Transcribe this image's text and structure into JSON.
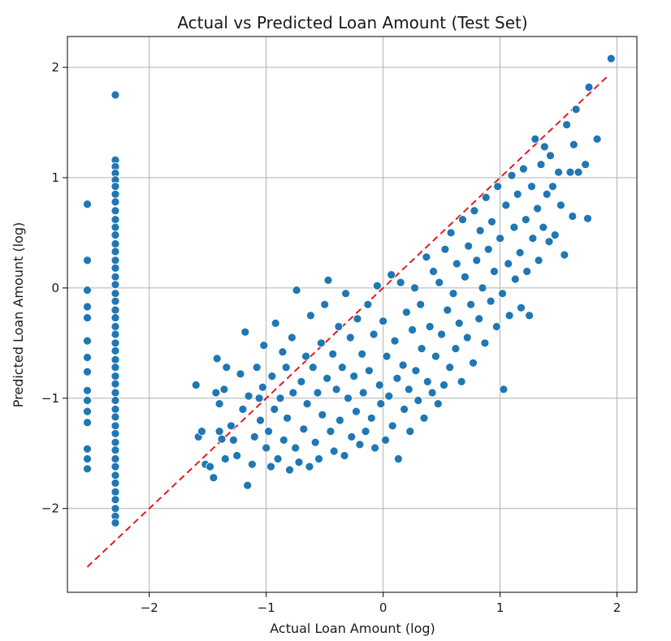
{
  "chart_data": {
    "type": "scatter",
    "title": "Actual vs Predicted Loan Amount (Test Set)",
    "xlabel": "Actual Loan Amount (log)",
    "ylabel": "Predicted Loan Amount (log)",
    "xlim": [
      -2.7,
      2.17
    ],
    "ylim": [
      -2.76,
      2.28
    ],
    "xticks": [
      -2,
      -1,
      0,
      1,
      2
    ],
    "yticks": [
      -2,
      -1,
      0,
      1,
      2
    ],
    "xtick_labels": [
      "−2",
      "−1",
      "0",
      "1",
      "2"
    ],
    "ytick_labels": [
      "−2",
      "−1",
      "0",
      "1",
      "2"
    ],
    "grid": true,
    "point_color": "#1f77b4",
    "points": [
      [
        -2.53,
        0.76
      ],
      [
        -2.53,
        0.25
      ],
      [
        -2.53,
        -0.02
      ],
      [
        -2.53,
        -0.17
      ],
      [
        -2.53,
        -0.27
      ],
      [
        -2.53,
        -0.48
      ],
      [
        -2.53,
        -0.63
      ],
      [
        -2.53,
        -0.76
      ],
      [
        -2.53,
        -0.93
      ],
      [
        -2.53,
        -1.02
      ],
      [
        -2.53,
        -1.12
      ],
      [
        -2.53,
        -1.22
      ],
      [
        -2.53,
        -1.46
      ],
      [
        -2.53,
        -1.55
      ],
      [
        -2.53,
        -1.64
      ],
      [
        -2.29,
        1.75
      ],
      [
        -2.29,
        1.16
      ],
      [
        -2.29,
        1.1
      ],
      [
        -2.29,
        1.04
      ],
      [
        -2.29,
        0.98
      ],
      [
        -2.29,
        0.92
      ],
      [
        -2.29,
        0.85
      ],
      [
        -2.29,
        0.78
      ],
      [
        -2.29,
        0.7
      ],
      [
        -2.29,
        0.62
      ],
      [
        -2.29,
        0.55
      ],
      [
        -2.29,
        0.48
      ],
      [
        -2.29,
        0.4
      ],
      [
        -2.29,
        0.33
      ],
      [
        -2.29,
        0.25
      ],
      [
        -2.29,
        0.18
      ],
      [
        -2.29,
        0.1
      ],
      [
        -2.29,
        0.03
      ],
      [
        -2.29,
        -0.05
      ],
      [
        -2.29,
        -0.12
      ],
      [
        -2.29,
        -0.2
      ],
      [
        -2.29,
        -0.27
      ],
      [
        -2.29,
        -0.35
      ],
      [
        -2.29,
        -0.42
      ],
      [
        -2.29,
        -0.5
      ],
      [
        -2.29,
        -0.57
      ],
      [
        -2.29,
        -0.65
      ],
      [
        -2.29,
        -0.72
      ],
      [
        -2.29,
        -0.8
      ],
      [
        -2.29,
        -0.87
      ],
      [
        -2.29,
        -0.95
      ],
      [
        -2.29,
        -1.02
      ],
      [
        -2.29,
        -1.1
      ],
      [
        -2.29,
        -1.17
      ],
      [
        -2.29,
        -1.25
      ],
      [
        -2.29,
        -1.32
      ],
      [
        -2.29,
        -1.4
      ],
      [
        -2.29,
        -1.47
      ],
      [
        -2.29,
        -1.55
      ],
      [
        -2.29,
        -1.62
      ],
      [
        -2.29,
        -1.7
      ],
      [
        -2.29,
        -1.77
      ],
      [
        -2.29,
        -1.85
      ],
      [
        -2.29,
        -1.92
      ],
      [
        -2.29,
        -2.0
      ],
      [
        -2.29,
        -2.07
      ],
      [
        -2.29,
        -2.13
      ],
      [
        -1.6,
        -0.88
      ],
      [
        -1.58,
        -1.35
      ],
      [
        -1.55,
        -1.3
      ],
      [
        -1.52,
        -1.6
      ],
      [
        -1.48,
        -1.62
      ],
      [
        -1.45,
        -1.72
      ],
      [
        -1.43,
        -0.95
      ],
      [
        -1.42,
        -0.64
      ],
      [
        -1.4,
        -1.05
      ],
      [
        -1.4,
        -1.3
      ],
      [
        -1.38,
        -1.37
      ],
      [
        -1.36,
        -0.92
      ],
      [
        -1.35,
        -1.55
      ],
      [
        -1.34,
        -0.72
      ],
      [
        -1.3,
        -1.25
      ],
      [
        -1.28,
        -1.38
      ],
      [
        -1.25,
        -1.52
      ],
      [
        -1.22,
        -0.78
      ],
      [
        -1.2,
        -1.1
      ],
      [
        -1.18,
        -0.4
      ],
      [
        -1.16,
        -1.79
      ],
      [
        -1.15,
        -0.98
      ],
      [
        -1.12,
        -1.6
      ],
      [
        -1.1,
        -1.35
      ],
      [
        -1.08,
        -0.72
      ],
      [
        -1.06,
        -1.0
      ],
      [
        -1.05,
        -1.2
      ],
      [
        -1.03,
        -0.9
      ],
      [
        -1.02,
        -0.52
      ],
      [
        -1.0,
        -1.45
      ],
      [
        -0.98,
        -1.3
      ],
      [
        -0.96,
        -1.62
      ],
      [
        -0.95,
        -0.8
      ],
      [
        -0.93,
        -1.1
      ],
      [
        -0.92,
        -0.32
      ],
      [
        -0.9,
        -1.55
      ],
      [
        -0.88,
        -1.0
      ],
      [
        -0.86,
        -0.58
      ],
      [
        -0.85,
        -1.38
      ],
      [
        -0.83,
        -0.72
      ],
      [
        -0.82,
        -1.18
      ],
      [
        -0.8,
        -1.65
      ],
      [
        -0.78,
        -0.45
      ],
      [
        -0.77,
        -0.95
      ],
      [
        -0.75,
        -1.45
      ],
      [
        -0.74,
        -0.02
      ],
      [
        -0.72,
        -1.58
      ],
      [
        -0.7,
        -0.85
      ],
      [
        -0.68,
        -1.28
      ],
      [
        -0.66,
        -0.62
      ],
      [
        -0.65,
        -1.05
      ],
      [
        -0.63,
        -1.62
      ],
      [
        -0.62,
        -0.25
      ],
      [
        -0.6,
        -0.72
      ],
      [
        -0.58,
        -1.4
      ],
      [
        -0.56,
        -0.95
      ],
      [
        -0.55,
        -1.55
      ],
      [
        -0.53,
        -0.5
      ],
      [
        -0.52,
        -1.15
      ],
      [
        -0.5,
        -0.15
      ],
      [
        -0.48,
        -0.82
      ],
      [
        -0.47,
        0.07
      ],
      [
        -0.45,
        -1.3
      ],
      [
        -0.43,
        -0.6
      ],
      [
        -0.42,
        -1.48
      ],
      [
        -0.4,
        -0.92
      ],
      [
        -0.38,
        -0.35
      ],
      [
        -0.37,
        -1.2
      ],
      [
        -0.35,
        -0.72
      ],
      [
        -0.33,
        -1.52
      ],
      [
        -0.32,
        -0.05
      ],
      [
        -0.3,
        -1.0
      ],
      [
        -0.28,
        -0.45
      ],
      [
        -0.27,
        -1.35
      ],
      [
        -0.25,
        -0.8
      ],
      [
        -0.23,
        -1.12
      ],
      [
        -0.22,
        -0.28
      ],
      [
        -0.2,
        -1.42
      ],
      [
        -0.18,
        -0.6
      ],
      [
        -0.17,
        -0.95
      ],
      [
        -0.15,
        -1.3
      ],
      [
        -0.13,
        -0.15
      ],
      [
        -0.12,
        -0.75
      ],
      [
        -0.1,
        -1.18
      ],
      [
        -0.08,
        -0.42
      ],
      [
        -0.07,
        -1.45
      ],
      [
        -0.05,
        0.02
      ],
      [
        -0.03,
        -0.88
      ],
      [
        -0.02,
        -1.05
      ],
      [
        0.0,
        -0.3
      ],
      [
        0.02,
        -1.38
      ],
      [
        0.03,
        -0.62
      ],
      [
        0.05,
        -0.98
      ],
      [
        0.07,
        0.12
      ],
      [
        0.08,
        -1.25
      ],
      [
        0.1,
        -0.48
      ],
      [
        0.12,
        -0.82
      ],
      [
        0.13,
        -1.55
      ],
      [
        0.15,
        0.05
      ],
      [
        0.17,
        -0.7
      ],
      [
        0.18,
        -1.1
      ],
      [
        0.2,
        -0.22
      ],
      [
        0.22,
        -0.92
      ],
      [
        0.23,
        -1.3
      ],
      [
        0.25,
        -0.38
      ],
      [
        0.27,
        0.0
      ],
      [
        0.28,
        -0.75
      ],
      [
        0.3,
        -1.02
      ],
      [
        0.32,
        -0.15
      ],
      [
        0.33,
        -0.55
      ],
      [
        0.35,
        -1.18
      ],
      [
        0.37,
        0.28
      ],
      [
        0.38,
        -0.85
      ],
      [
        0.4,
        -0.35
      ],
      [
        0.42,
        -0.95
      ],
      [
        0.43,
        0.15
      ],
      [
        0.45,
        -0.62
      ],
      [
        0.47,
        -1.05
      ],
      [
        0.48,
        0.05
      ],
      [
        0.5,
        -0.42
      ],
      [
        0.52,
        -0.88
      ],
      [
        0.53,
        0.35
      ],
      [
        0.55,
        -0.2
      ],
      [
        0.57,
        -0.72
      ],
      [
        0.58,
        0.5
      ],
      [
        0.6,
        -0.05
      ],
      [
        0.62,
        -0.55
      ],
      [
        0.63,
        0.22
      ],
      [
        0.65,
        -0.32
      ],
      [
        0.67,
        -0.85
      ],
      [
        0.68,
        0.62
      ],
      [
        0.7,
        0.1
      ],
      [
        0.72,
        -0.45
      ],
      [
        0.73,
        0.38
      ],
      [
        0.75,
        -0.15
      ],
      [
        0.77,
        -0.68
      ],
      [
        0.78,
        0.7
      ],
      [
        0.8,
        0.25
      ],
      [
        0.82,
        -0.28
      ],
      [
        0.83,
        0.52
      ],
      [
        0.85,
        0.0
      ],
      [
        0.87,
        -0.5
      ],
      [
        0.88,
        0.82
      ],
      [
        0.9,
        0.35
      ],
      [
        0.92,
        -0.12
      ],
      [
        0.93,
        0.6
      ],
      [
        0.95,
        0.15
      ],
      [
        0.97,
        -0.35
      ],
      [
        0.98,
        0.92
      ],
      [
        1.0,
        0.45
      ],
      [
        1.02,
        -0.05
      ],
      [
        1.03,
        -0.92
      ],
      [
        1.05,
        0.75
      ],
      [
        1.07,
        0.22
      ],
      [
        1.08,
        -0.25
      ],
      [
        1.1,
        1.02
      ],
      [
        1.12,
        0.55
      ],
      [
        1.13,
        0.08
      ],
      [
        1.15,
        0.85
      ],
      [
        1.17,
        0.32
      ],
      [
        1.18,
        -0.18
      ],
      [
        1.2,
        1.08
      ],
      [
        1.22,
        0.62
      ],
      [
        1.23,
        0.15
      ],
      [
        1.25,
        -0.25
      ],
      [
        1.27,
        0.92
      ],
      [
        1.28,
        0.45
      ],
      [
        1.3,
        1.35
      ],
      [
        1.32,
        0.72
      ],
      [
        1.33,
        0.25
      ],
      [
        1.35,
        1.12
      ],
      [
        1.37,
        0.55
      ],
      [
        1.38,
        1.28
      ],
      [
        1.4,
        0.85
      ],
      [
        1.42,
        0.42
      ],
      [
        1.43,
        1.2
      ],
      [
        1.45,
        0.92
      ],
      [
        1.47,
        0.48
      ],
      [
        1.5,
        1.05
      ],
      [
        1.52,
        0.75
      ],
      [
        1.55,
        0.3
      ],
      [
        1.57,
        1.48
      ],
      [
        1.6,
        1.05
      ],
      [
        1.62,
        0.65
      ],
      [
        1.63,
        1.3
      ],
      [
        1.65,
        1.62
      ],
      [
        1.67,
        1.05
      ],
      [
        1.73,
        1.12
      ],
      [
        1.75,
        0.63
      ],
      [
        1.76,
        1.82
      ],
      [
        1.83,
        1.35
      ],
      [
        1.95,
        2.08
      ]
    ],
    "reference_line": {
      "x": [
        -2.53,
        1.93
      ],
      "y": [
        -2.53,
        1.93
      ],
      "color": "#e41a1c",
      "style": "dashed"
    }
  }
}
